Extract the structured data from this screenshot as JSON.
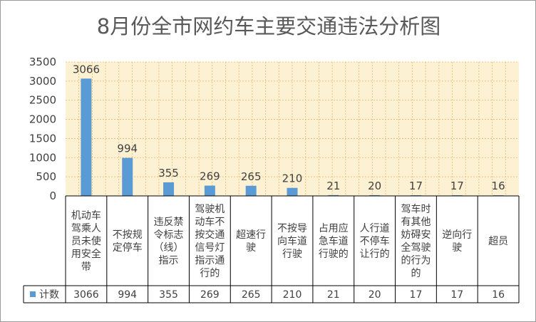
{
  "chart_data": {
    "type": "bar",
    "title": "8月份全市网约车主要交通违法分析图",
    "categories": [
      [
        "机动车",
        "驾乘人",
        "员未使",
        "用安全",
        "带"
      ],
      [
        "不按规",
        "定停车"
      ],
      [
        "违反禁",
        "令标志",
        "（线）",
        "指示"
      ],
      [
        "驾驶机",
        "动车不",
        "按交通",
        "信号灯",
        "指示通",
        "行的"
      ],
      [
        "超速行",
        "驶"
      ],
      [
        "不按导",
        "向车道",
        "行驶"
      ],
      [
        "占用应",
        "急车道",
        "行驶的"
      ],
      [
        "人行道",
        "不停车",
        "让行的"
      ],
      [
        "驾车时",
        "有其他",
        "妨碍安",
        "全驾驶",
        "的行为",
        "的"
      ],
      [
        "逆向行",
        "驶"
      ],
      [
        "超员"
      ]
    ],
    "series": [
      {
        "name": "计数",
        "values": [
          3066,
          994,
          355,
          269,
          265,
          210,
          21,
          20,
          17,
          17,
          16
        ]
      }
    ],
    "ylim": [
      0,
      3500
    ],
    "yticks": [
      0,
      500,
      1000,
      1500,
      2000,
      2500,
      3000,
      3500
    ],
    "grid": true,
    "legend": "data-table",
    "colors": {
      "bar": "#5b9bd5",
      "plot_background": "#fdf1d3",
      "grid": "#e9b56b",
      "table_border": "#000000"
    }
  }
}
